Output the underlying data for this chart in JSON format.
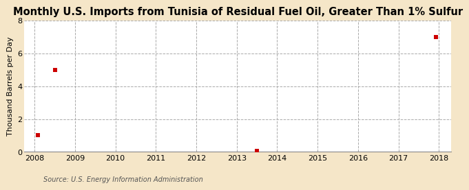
{
  "title": "Monthly U.S. Imports from Tunisia of Residual Fuel Oil, Greater Than 1% Sulfur",
  "ylabel": "Thousand Barrels per Day",
  "source": "Source: U.S. Energy Information Administration",
  "figure_bg": "#f5e6c8",
  "plot_bg": "#ffffff",
  "data_x": [
    2008.08,
    2008.5,
    2013.5,
    2017.92
  ],
  "data_y": [
    1,
    5,
    0.04,
    7
  ],
  "marker_color": "#cc0000",
  "marker_size": 20,
  "xlim": [
    2007.75,
    2018.3
  ],
  "ylim": [
    0,
    8
  ],
  "yticks": [
    0,
    2,
    4,
    6,
    8
  ],
  "xticks": [
    2008,
    2009,
    2010,
    2011,
    2012,
    2013,
    2014,
    2015,
    2016,
    2017,
    2018
  ],
  "grid_color": "#aaaaaa",
  "grid_style": "--",
  "title_fontsize": 10.5,
  "label_fontsize": 8,
  "tick_fontsize": 8,
  "source_fontsize": 7
}
